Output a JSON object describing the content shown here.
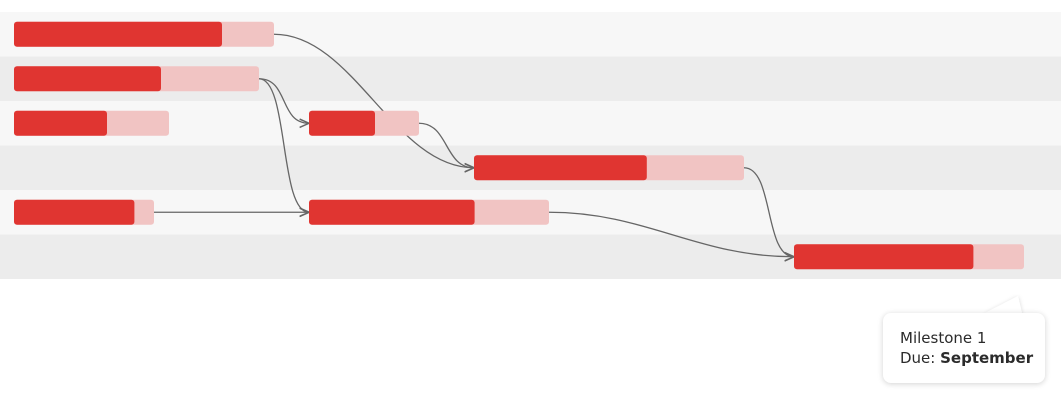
{
  "chart_data": {
    "type": "gantt",
    "rows": 6,
    "tasks": [
      {
        "id": "t1",
        "row": 0,
        "start": 0,
        "end": 26,
        "completed": 0.8
      },
      {
        "id": "t2",
        "row": 1,
        "start": 0,
        "end": 24.5,
        "completed": 0.6
      },
      {
        "id": "t3",
        "row": 2,
        "start": 0,
        "end": 15.5,
        "completed": 0.6
      },
      {
        "id": "t4",
        "row": 2,
        "start": 29.5,
        "end": 40.5,
        "completed": 0.6
      },
      {
        "id": "t5",
        "row": 3,
        "start": 46,
        "end": 73,
        "completed": 0.64
      },
      {
        "id": "t6",
        "row": 4,
        "start": 0,
        "end": 14,
        "completed": 0.86
      },
      {
        "id": "t7",
        "row": 4,
        "start": 29.5,
        "end": 53.5,
        "completed": 0.69
      },
      {
        "id": "t8",
        "row": 5,
        "start": 78,
        "end": 101,
        "completed": 0.78
      }
    ],
    "dependencies": [
      {
        "from": "t1",
        "to": "t5"
      },
      {
        "from": "t2",
        "to": "t4"
      },
      {
        "from": "t2",
        "to": "t7"
      },
      {
        "from": "t4",
        "to": "t5"
      },
      {
        "from": "t6",
        "to": "t7"
      },
      {
        "from": "t5",
        "to": "t8"
      },
      {
        "from": "t7",
        "to": "t8"
      }
    ],
    "colors": {
      "complete": "#e03531",
      "incomplete": "#f1c4c3",
      "row_light": "#f7f7f7",
      "row_dark": "#ececec",
      "connector": "#666666"
    }
  },
  "tooltip": {
    "line1": "Milestone 1",
    "line2_prefix": "Due: ",
    "line2_value": "September"
  }
}
